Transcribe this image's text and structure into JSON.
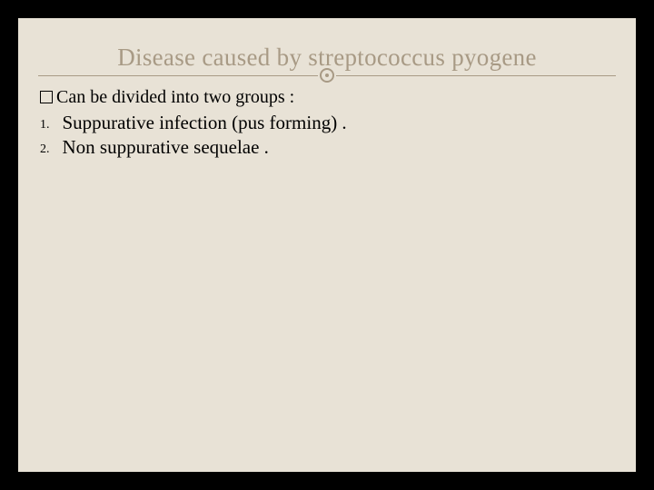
{
  "slide": {
    "title": "Disease caused by streptococcus pyogene",
    "subtitle_prefix_glyph": "checkbox",
    "subtitle": "Can be divided into two groups :",
    "list": [
      {
        "num": "1.",
        "text": "Suppurative infection (pus forming) ."
      },
      {
        "num": "2.",
        "text": "Non suppurative sequelae  ."
      }
    ]
  },
  "style": {
    "background_color": "#000000",
    "slide_background_color": "#e8e2d6",
    "title_color": "#a89a85",
    "divider_color": "#a89a85",
    "text_color": "#000000",
    "title_fontsize": 27,
    "body_fontsize": 21,
    "subtitle_fontsize": 20,
    "font_family": "Georgia, serif",
    "slide_width": 680,
    "slide_height": 500,
    "outer_width": 720,
    "outer_height": 540
  }
}
